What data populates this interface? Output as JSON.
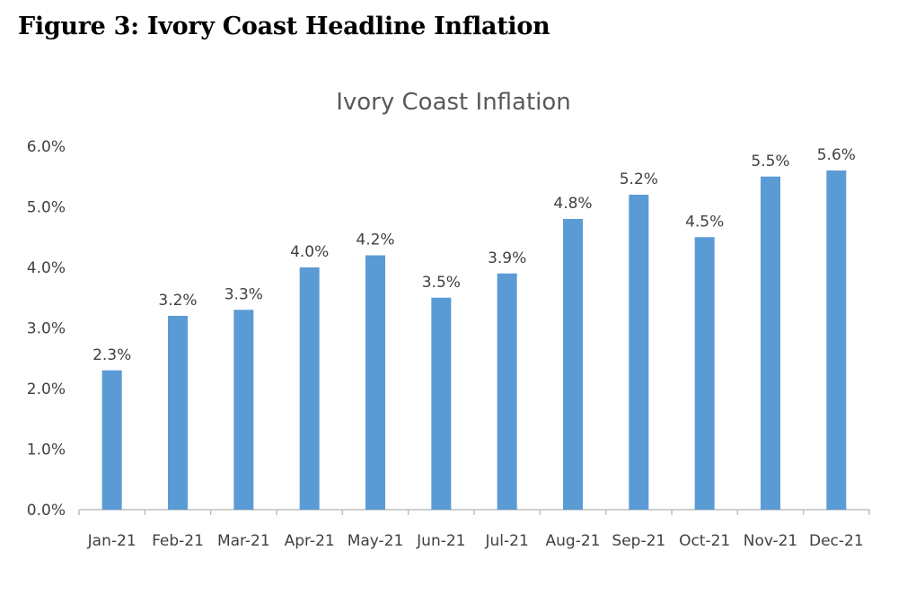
{
  "figure": {
    "caption": "Figure 3: Ivory Coast Headline Inflation"
  },
  "chart_data": {
    "type": "bar",
    "title": "Ivory Coast Inflation",
    "xlabel": "",
    "ylabel": "",
    "categories": [
      "Jan-21",
      "Feb-21",
      "Mar-21",
      "Apr-21",
      "May-21",
      "Jun-21",
      "Jul-21",
      "Aug-21",
      "Sep-21",
      "Oct-21",
      "Nov-21",
      "Dec-21"
    ],
    "values": [
      2.3,
      3.2,
      3.3,
      4.0,
      4.2,
      3.5,
      3.9,
      4.8,
      5.2,
      4.5,
      5.5,
      5.6
    ],
    "data_labels": [
      "2.3%",
      "3.2%",
      "3.3%",
      "4.0%",
      "4.2%",
      "3.5%",
      "3.9%",
      "4.8%",
      "5.2%",
      "4.5%",
      "5.5%",
      "5.6%"
    ],
    "yticks": [
      0,
      1,
      2,
      3,
      4,
      5,
      6
    ],
    "ytick_labels": [
      "0.0%",
      "1.0%",
      "2.0%",
      "3.0%",
      "4.0%",
      "5.0%",
      "6.0%"
    ],
    "ylim": [
      0,
      6
    ],
    "grid": false,
    "legend": "none",
    "colors": {
      "bar": "#5b9bd5",
      "axis": "#bfbfbf",
      "text": "#404040",
      "title": "#595959"
    }
  }
}
